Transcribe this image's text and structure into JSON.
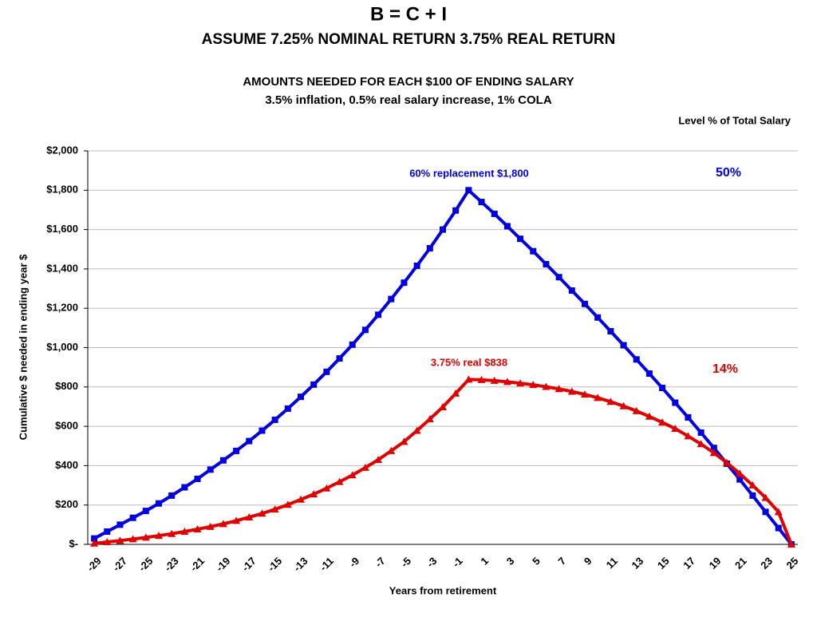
{
  "chart_data": {
    "type": "line",
    "title": "B = C + I",
    "subtitle": "ASSUME 7.25% NOMINAL RETURN  3.75% REAL RETURN",
    "heading": "AMOUNTS NEEDED FOR EACH $100 OF ENDING SALARY",
    "subheading": "3.5% inflation, 0.5% real salary increase, 1% COLA",
    "note": "Level % of Total Salary",
    "annotations": [
      "60% replacement  $1,800",
      "50%",
      "3.75% real  $838",
      "14%"
    ],
    "x_label": "Years from retirement",
    "y_label": "Cumulative $ needed in ending year $",
    "categories": [
      -29,
      null,
      -27,
      null,
      -25,
      null,
      -23,
      null,
      -21,
      null,
      -19,
      null,
      -17,
      null,
      -15,
      null,
      -13,
      null,
      -11,
      null,
      -9,
      null,
      -7,
      null,
      -5,
      null,
      -3,
      null,
      -1,
      null,
      1,
      null,
      3,
      null,
      5,
      null,
      7,
      null,
      9,
      null,
      11,
      null,
      13,
      null,
      15,
      null,
      17,
      null,
      19,
      null,
      21,
      null,
      23,
      null,
      25
    ],
    "series": [
      {
        "color": "#0000e0",
        "marker": "square",
        "values": [
          30,
          65,
          100,
          135,
          170,
          208,
          248,
          290,
          333,
          380,
          427,
          475,
          525,
          578,
          633,
          690,
          750,
          812,
          877,
          945,
          1015,
          1090,
          1167,
          1247,
          1330,
          1416,
          1505,
          1600,
          1697,
          1800,
          1740,
          1680,
          1617,
          1553,
          1490,
          1424,
          1358,
          1290,
          1222,
          1153,
          1083,
          1012,
          940,
          868,
          795,
          720,
          645,
          568,
          490,
          410,
          330,
          248,
          165,
          83,
          0
        ]
      },
      {
        "color": "#e00000",
        "marker": "triangle",
        "values": [
          5,
          12,
          19,
          27,
          35,
          44,
          54,
          65,
          77,
          90,
          104,
          120,
          138,
          157,
          178,
          202,
          228,
          255,
          285,
          318,
          352,
          390,
          430,
          475,
          522,
          578,
          637,
          698,
          767,
          838,
          836,
          832,
          826,
          819,
          811,
          801,
          790,
          777,
          762,
          745,
          725,
          703,
          678,
          650,
          620,
          588,
          550,
          510,
          465,
          415,
          360,
          300,
          237,
          165,
          0
        ]
      }
    ],
    "ylim": [
      0,
      2000
    ],
    "yticks": [
      {
        "value": 0,
        "label": "$-"
      },
      {
        "value": 200,
        "label": "$200"
      },
      {
        "value": 400,
        "label": "$400"
      },
      {
        "value": 600,
        "label": "$600"
      },
      {
        "value": 800,
        "label": "$800"
      },
      {
        "value": 1000,
        "label": "$1,000"
      },
      {
        "value": 1200,
        "label": "$1,200"
      },
      {
        "value": 1400,
        "label": "$1,400"
      },
      {
        "value": 1600,
        "label": "$1,600"
      },
      {
        "value": 1800,
        "label": "$1,800"
      },
      {
        "value": 2000,
        "label": "$2,000"
      }
    ],
    "grid": true
  }
}
